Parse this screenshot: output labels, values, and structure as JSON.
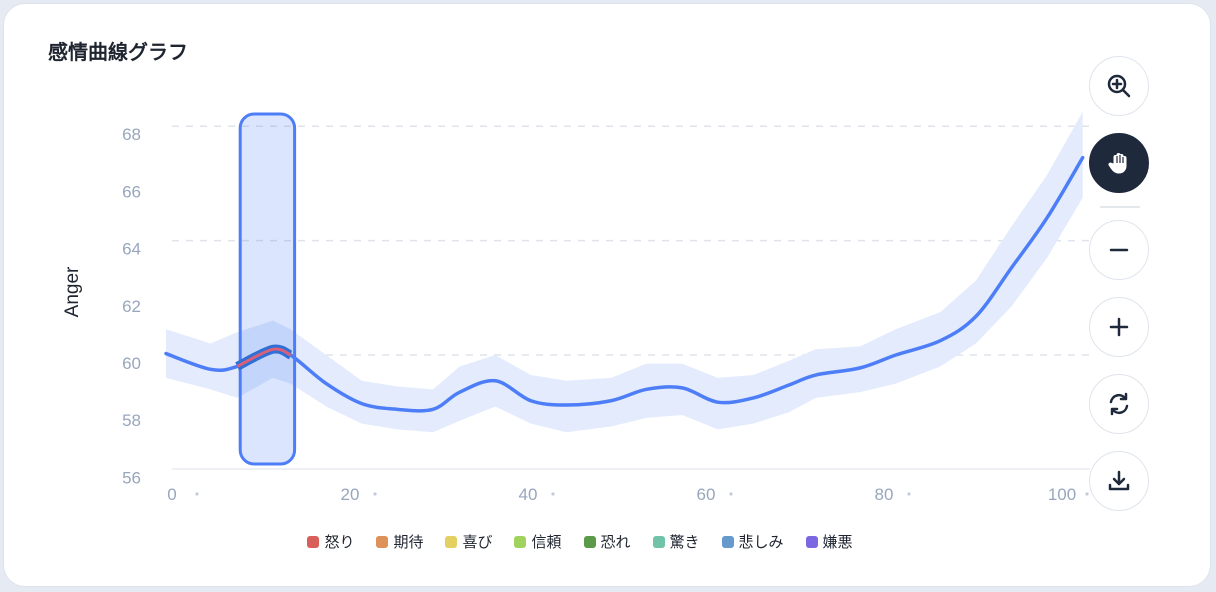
{
  "title": "感情曲線グラフ",
  "tools": [
    {
      "name": "zoom-in-icon",
      "label": "zoom"
    },
    {
      "name": "hand-icon",
      "label": "pan",
      "active": true
    },
    {
      "name": "minus-icon",
      "label": "zoom out"
    },
    {
      "name": "plus-icon",
      "label": "zoom in"
    },
    {
      "name": "reset-icon",
      "label": "reset"
    },
    {
      "name": "download-icon",
      "label": "download"
    }
  ],
  "legend": [
    {
      "label": "怒り",
      "color": "#d9605a"
    },
    {
      "label": "期待",
      "color": "#de925a"
    },
    {
      "label": "喜び",
      "color": "#e3d060"
    },
    {
      "label": "信頼",
      "color": "#9fd35e"
    },
    {
      "label": "恐れ",
      "color": "#5a9a48"
    },
    {
      "label": "驚き",
      "color": "#6fc3a8"
    },
    {
      "label": "悲しみ",
      "color": "#6699cc"
    },
    {
      "label": "嫌悪",
      "color": "#7b68e0"
    }
  ],
  "chart_data": {
    "type": "line",
    "title": "感情曲線グラフ",
    "ylabel": "Anger",
    "xlabel": "",
    "xlim": [
      0,
      104
    ],
    "ylim": [
      56,
      68
    ],
    "xticks": [
      0,
      20,
      40,
      60,
      80,
      100
    ],
    "yticks": [
      56,
      58,
      60,
      62,
      64,
      66,
      68
    ],
    "grid_y": [
      60,
      64,
      68
    ],
    "x": [
      0,
      5,
      8,
      12,
      14,
      18,
      22,
      26,
      30,
      33,
      37,
      41,
      45,
      50,
      54,
      58,
      62,
      66,
      70,
      73,
      78,
      82,
      87,
      91,
      95,
      99,
      103
    ],
    "y": [
      60.05,
      59.5,
      59.6,
      60.2,
      60,
      59.0,
      58.3,
      58.1,
      58.1,
      58.7,
      59.1,
      58.4,
      58.25,
      58.4,
      58.8,
      58.85,
      58.35,
      58.5,
      58.95,
      59.3,
      59.55,
      60,
      60.5,
      61.35,
      63.05,
      64.8,
      66.9
    ],
    "upper": [
      60.9,
      60.4,
      60.8,
      61.2,
      60.9,
      60.0,
      59.1,
      58.9,
      58.8,
      59.6,
      60.0,
      59.3,
      59.1,
      59.2,
      59.7,
      59.7,
      59.2,
      59.3,
      59.8,
      60.2,
      60.3,
      60.9,
      61.5,
      62.6,
      64.5,
      66.3,
      68.5
    ],
    "lower": [
      59.2,
      58.8,
      58.5,
      59.2,
      59.0,
      58.2,
      57.6,
      57.4,
      57.3,
      57.7,
      58.2,
      57.6,
      57.3,
      57.5,
      57.8,
      57.9,
      57.4,
      57.6,
      58.0,
      58.5,
      58.7,
      59.0,
      59.6,
      60.4,
      61.7,
      63.4,
      65.5
    ],
    "color": "#4d7ef7",
    "band_color": "#e3ebfd",
    "selection": {
      "x_range": [
        8,
        14
      ],
      "highlight_color": "#d9605a"
    }
  }
}
